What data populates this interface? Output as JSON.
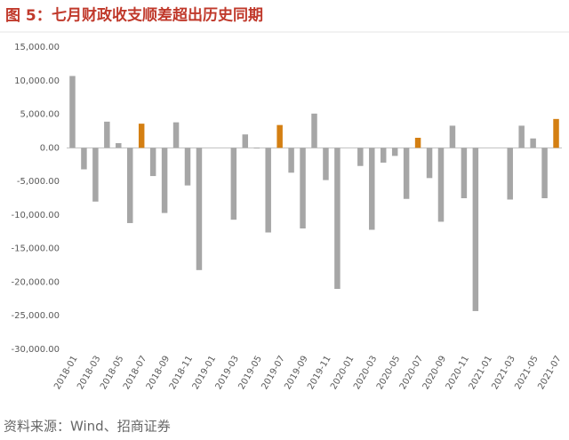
{
  "figure_label": "图 5：",
  "chart_data": {
    "type": "bar",
    "title": "七月财政收支顺差超出历史同期",
    "categories": [
      "2018-01",
      null,
      "2018-03",
      null,
      "2018-05",
      null,
      "2018-07",
      null,
      "2018-09",
      null,
      "2018-11",
      null,
      "2019-01",
      null,
      "2019-03",
      null,
      "2019-05",
      null,
      "2019-07",
      null,
      "2019-09",
      null,
      "2019-11",
      null,
      "2020-01",
      null,
      "2020-03",
      null,
      "2020-05",
      null,
      "2020-07",
      null,
      "2020-09",
      null,
      "2020-11",
      null,
      "2021-01",
      null,
      "2021-03",
      null,
      "2021-05",
      null,
      "2021-07"
    ],
    "values": [
      10700,
      -3200,
      -8000,
      3900,
      700,
      -11200,
      3600,
      -4200,
      -9700,
      3800,
      -5600,
      -18200,
      null,
      null,
      -10700,
      2000,
      -100,
      -12600,
      3400,
      -3700,
      -12000,
      5100,
      -4800,
      -21000,
      null,
      -2700,
      -12200,
      -2200,
      -1200,
      -7600,
      1500,
      -4500,
      -11000,
      3300,
      -7500,
      -24300,
      null,
      null,
      -7700,
      3300,
      1400,
      -7500,
      4300
    ],
    "colors": [
      "#a6a6a6",
      "#a6a6a6",
      "#a6a6a6",
      "#a6a6a6",
      "#a6a6a6",
      "#a6a6a6",
      "#d47f12",
      "#a6a6a6",
      "#a6a6a6",
      "#a6a6a6",
      "#a6a6a6",
      "#a6a6a6",
      "#a6a6a6",
      "#a6a6a6",
      "#a6a6a6",
      "#a6a6a6",
      "#a6a6a6",
      "#a6a6a6",
      "#d47f12",
      "#a6a6a6",
      "#a6a6a6",
      "#a6a6a6",
      "#a6a6a6",
      "#a6a6a6",
      "#a6a6a6",
      "#a6a6a6",
      "#a6a6a6",
      "#a6a6a6",
      "#a6a6a6",
      "#a6a6a6",
      "#d47f12",
      "#a6a6a6",
      "#a6a6a6",
      "#a6a6a6",
      "#a6a6a6",
      "#a6a6a6",
      "#a6a6a6",
      "#a6a6a6",
      "#a6a6a6",
      "#a6a6a6",
      "#a6a6a6",
      "#a6a6a6",
      "#d47f12"
    ],
    "ylim": [
      -30000,
      15000
    ],
    "yticks": [
      {
        "value": 15000,
        "label": "15,000.00"
      },
      {
        "value": 10000,
        "label": "10,000.00"
      },
      {
        "value": 5000,
        "label": "5,000.00"
      },
      {
        "value": 0,
        "label": "0.00"
      },
      {
        "value": -5000,
        "label": "-5,000.00"
      },
      {
        "value": -10000,
        "label": "-10,000.00"
      },
      {
        "value": -15000,
        "label": "-15,000.00"
      },
      {
        "value": -20000,
        "label": "-20,000.00"
      },
      {
        "value": -25000,
        "label": "-25,000.00"
      },
      {
        "value": -30000,
        "label": "-30,000.00"
      }
    ],
    "grid": false
  },
  "source": "资料来源：Wind、招商证券"
}
